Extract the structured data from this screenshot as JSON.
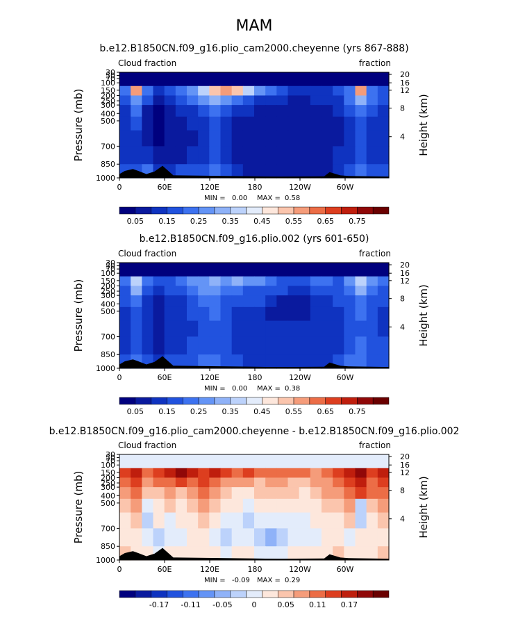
{
  "page_title": "MAM",
  "chart_data": [
    {
      "type": "heatmap",
      "title": "b.e12.B1850CN.f09_g16.plio_cam2000.cheyenne (yrs 867-888)",
      "left_label": "Cloud fraction",
      "right_label": "fraction",
      "ylabel": "Pressure (mb)",
      "ylabel_right": "Height (km)",
      "x_ticks": [
        "0",
        "60E",
        "120E",
        "180",
        "120W",
        "60W"
      ],
      "y_ticks": [
        "30",
        "50",
        "70",
        "100",
        "150",
        "200",
        "250",
        "300",
        "400",
        "500",
        "700",
        "850",
        "1000"
      ],
      "height_ticks": [
        "20",
        "16",
        "12",
        "8",
        "4"
      ],
      "min_label": "MIN =",
      "min_value": "0.00",
      "max_label": "MAX =",
      "max_value": "0.58",
      "colorbar_labels": [
        "0.05",
        "0.15",
        "0.25",
        "0.35",
        "0.45",
        "0.55",
        "0.65",
        "0.75"
      ],
      "colorbar_colors": [
        "#00007e",
        "#0a1a9e",
        "#0f33c0",
        "#2152de",
        "#3d72f0",
        "#6494f6",
        "#8fb2f8",
        "#bcd2fb",
        "#e3ecfb",
        "#fde7dc",
        "#fbc5ad",
        "#f59c7a",
        "#ec6d46",
        "#dd3e1f",
        "#bf1e0d",
        "#900808",
        "#6a0000"
      ],
      "field": [
        [
          "#00007e",
          "#00007e",
          "#00007e",
          "#00007e",
          "#00007e",
          "#00007e",
          "#00007e",
          "#00007e",
          "#00007e",
          "#00007e",
          "#00007e",
          "#00007e",
          "#00007e",
          "#00007e",
          "#00007e",
          "#00007e",
          "#00007e",
          "#00007e",
          "#00007e",
          "#00007e",
          "#00007e",
          "#00007e",
          "#00007e",
          "#00007e"
        ],
        [
          "#3d72f0",
          "#f59c7a",
          "#3d72f0",
          "#0f33c0",
          "#2152de",
          "#3d72f0",
          "#6494f6",
          "#bcd2fb",
          "#fbc5ad",
          "#f59c7a",
          "#fbc5ad",
          "#bcd2fb",
          "#6494f6",
          "#3d72f0",
          "#2152de",
          "#0f33c0",
          "#0f33c0",
          "#0f33c0",
          "#0f33c0",
          "#2152de",
          "#3d72f0",
          "#f59c7a",
          "#3d72f0",
          "#2152de"
        ],
        [
          "#2152de",
          "#6494f6",
          "#2152de",
          "#0a1a9e",
          "#0f33c0",
          "#2152de",
          "#3d72f0",
          "#6494f6",
          "#8fb2f8",
          "#6494f6",
          "#3d72f0",
          "#2152de",
          "#0f33c0",
          "#0f33c0",
          "#0f33c0",
          "#0a1a9e",
          "#0a1a9e",
          "#0f33c0",
          "#0f33c0",
          "#0f33c0",
          "#3d72f0",
          "#8fb2f8",
          "#3d72f0",
          "#2152de"
        ],
        [
          "#0f33c0",
          "#3d72f0",
          "#0a1a9e",
          "#00007e",
          "#0a1a9e",
          "#0f33c0",
          "#0f33c0",
          "#2152de",
          "#3d72f0",
          "#2152de",
          "#0f33c0",
          "#0f33c0",
          "#0a1a9e",
          "#0a1a9e",
          "#0a1a9e",
          "#0a1a9e",
          "#0a1a9e",
          "#0a1a9e",
          "#0a1a9e",
          "#0f33c0",
          "#2152de",
          "#3d72f0",
          "#2152de",
          "#0f33c0"
        ],
        [
          "#0f33c0",
          "#2152de",
          "#0a1a9e",
          "#00007e",
          "#0a1a9e",
          "#0a1a9e",
          "#0f33c0",
          "#0f33c0",
          "#2152de",
          "#0f33c0",
          "#0a1a9e",
          "#0a1a9e",
          "#0a1a9e",
          "#0a1a9e",
          "#0a1a9e",
          "#0a1a9e",
          "#0a1a9e",
          "#0a1a9e",
          "#0a1a9e",
          "#0a1a9e",
          "#0f33c0",
          "#2152de",
          "#0f33c0",
          "#0f33c0"
        ],
        [
          "#0f33c0",
          "#0f33c0",
          "#0a1a9e",
          "#00007e",
          "#0a1a9e",
          "#0a1a9e",
          "#0a1a9e",
          "#0f33c0",
          "#2152de",
          "#0f33c0",
          "#0a1a9e",
          "#0a1a9e",
          "#0a1a9e",
          "#0a1a9e",
          "#0a1a9e",
          "#0a1a9e",
          "#0a1a9e",
          "#0a1a9e",
          "#0a1a9e",
          "#0a1a9e",
          "#0f33c0",
          "#2152de",
          "#0f33c0",
          "#0f33c0"
        ],
        [
          "#0f33c0",
          "#0f33c0",
          "#0f33c0",
          "#0a1a9e",
          "#0a1a9e",
          "#0a1a9e",
          "#0f33c0",
          "#0f33c0",
          "#2152de",
          "#0f33c0",
          "#0a1a9e",
          "#0a1a9e",
          "#0a1a9e",
          "#0a1a9e",
          "#0a1a9e",
          "#0a1a9e",
          "#0a1a9e",
          "#0a1a9e",
          "#0a1a9e",
          "#0f33c0",
          "#0f33c0",
          "#2152de",
          "#0f33c0",
          "#0f33c0"
        ],
        [
          "#2152de",
          "#2152de",
          "#3d72f0",
          "#0f33c0",
          "#0f33c0",
          "#2152de",
          "#2152de",
          "#2152de",
          "#3d72f0",
          "#2152de",
          "#0f33c0",
          "#0a1a9e",
          "#0a1a9e",
          "#0a1a9e",
          "#0a1a9e",
          "#0a1a9e",
          "#0a1a9e",
          "#0a1a9e",
          "#0a1a9e",
          "#0f33c0",
          "#2152de",
          "#3d72f0",
          "#2152de",
          "#2152de"
        ]
      ]
    },
    {
      "type": "heatmap",
      "title": "b.e12.B1850CN.f09_g16.plio.002 (yrs 601-650)",
      "left_label": "Cloud fraction",
      "right_label": "fraction",
      "ylabel": "Pressure (mb)",
      "ylabel_right": "Height (km)",
      "x_ticks": [
        "0",
        "60E",
        "120E",
        "180",
        "120W",
        "60W"
      ],
      "y_ticks": [
        "30",
        "50",
        "70",
        "100",
        "150",
        "200",
        "250",
        "300",
        "400",
        "500",
        "700",
        "850",
        "1000"
      ],
      "height_ticks": [
        "20",
        "16",
        "12",
        "8",
        "4"
      ],
      "min_label": "MIN =",
      "min_value": "0.00",
      "max_label": "MAX =",
      "max_value": "0.38",
      "colorbar_labels": [
        "0.05",
        "0.15",
        "0.25",
        "0.35",
        "0.45",
        "0.55",
        "0.65",
        "0.75"
      ],
      "colorbar_colors": [
        "#00007e",
        "#0a1a9e",
        "#0f33c0",
        "#2152de",
        "#3d72f0",
        "#6494f6",
        "#8fb2f8",
        "#bcd2fb",
        "#e3ecfb",
        "#fde7dc",
        "#fbc5ad",
        "#f59c7a",
        "#ec6d46",
        "#dd3e1f",
        "#bf1e0d",
        "#900808",
        "#6a0000"
      ],
      "field": [
        [
          "#00007e",
          "#00007e",
          "#00007e",
          "#00007e",
          "#00007e",
          "#00007e",
          "#00007e",
          "#00007e",
          "#00007e",
          "#00007e",
          "#00007e",
          "#00007e",
          "#00007e",
          "#00007e",
          "#00007e",
          "#00007e",
          "#00007e",
          "#00007e",
          "#00007e",
          "#00007e",
          "#00007e",
          "#00007e",
          "#00007e",
          "#00007e"
        ],
        [
          "#3d72f0",
          "#bcd2fb",
          "#3d72f0",
          "#2152de",
          "#2152de",
          "#3d72f0",
          "#6494f6",
          "#6494f6",
          "#8fb2f8",
          "#6494f6",
          "#8fb2f8",
          "#6494f6",
          "#6494f6",
          "#3d72f0",
          "#2152de",
          "#2152de",
          "#2152de",
          "#3d72f0",
          "#3d72f0",
          "#2152de",
          "#6494f6",
          "#bcd2fb",
          "#6494f6",
          "#3d72f0"
        ],
        [
          "#2152de",
          "#8fb2f8",
          "#2152de",
          "#0f33c0",
          "#2152de",
          "#2152de",
          "#3d72f0",
          "#6494f6",
          "#6494f6",
          "#3d72f0",
          "#3d72f0",
          "#2152de",
          "#2152de",
          "#2152de",
          "#2152de",
          "#0f33c0",
          "#0f33c0",
          "#2152de",
          "#2152de",
          "#2152de",
          "#3d72f0",
          "#8fb2f8",
          "#3d72f0",
          "#2152de"
        ],
        [
          "#2152de",
          "#3d72f0",
          "#0f33c0",
          "#0a1a9e",
          "#0f33c0",
          "#0f33c0",
          "#2152de",
          "#3d72f0",
          "#3d72f0",
          "#2152de",
          "#2152de",
          "#2152de",
          "#2152de",
          "#0f33c0",
          "#0a1a9e",
          "#0a1a9e",
          "#0a1a9e",
          "#0f33c0",
          "#0f33c0",
          "#2152de",
          "#2152de",
          "#3d72f0",
          "#2152de",
          "#2152de"
        ],
        [
          "#0f33c0",
          "#2152de",
          "#0f33c0",
          "#0a1a9e",
          "#0f33c0",
          "#0f33c0",
          "#2152de",
          "#2152de",
          "#3d72f0",
          "#2152de",
          "#0f33c0",
          "#0f33c0",
          "#0f33c0",
          "#0a1a9e",
          "#0a1a9e",
          "#0a1a9e",
          "#0a1a9e",
          "#0f33c0",
          "#0f33c0",
          "#0f33c0",
          "#2152de",
          "#3d72f0",
          "#2152de",
          "#0f33c0"
        ],
        [
          "#0f33c0",
          "#2152de",
          "#0f33c0",
          "#0a1a9e",
          "#0f33c0",
          "#0f33c0",
          "#0f33c0",
          "#2152de",
          "#2152de",
          "#2152de",
          "#0f33c0",
          "#0f33c0",
          "#0f33c0",
          "#0f33c0",
          "#0f33c0",
          "#0f33c0",
          "#0f33c0",
          "#0f33c0",
          "#0f33c0",
          "#0f33c0",
          "#2152de",
          "#2152de",
          "#2152de",
          "#0f33c0"
        ],
        [
          "#0f33c0",
          "#2152de",
          "#0f33c0",
          "#0a1a9e",
          "#0f33c0",
          "#0f33c0",
          "#2152de",
          "#2152de",
          "#2152de",
          "#2152de",
          "#0f33c0",
          "#0f33c0",
          "#0f33c0",
          "#0f33c0",
          "#0f33c0",
          "#0f33c0",
          "#0f33c0",
          "#0f33c0",
          "#0f33c0",
          "#0f33c0",
          "#2152de",
          "#3d72f0",
          "#2152de",
          "#2152de"
        ],
        [
          "#2152de",
          "#3d72f0",
          "#2152de",
          "#0f33c0",
          "#2152de",
          "#2152de",
          "#2152de",
          "#3d72f0",
          "#3d72f0",
          "#2152de",
          "#2152de",
          "#0f33c0",
          "#0f33c0",
          "#0f33c0",
          "#0f33c0",
          "#0f33c0",
          "#0f33c0",
          "#0f33c0",
          "#0f33c0",
          "#2152de",
          "#3d72f0",
          "#3d72f0",
          "#2152de",
          "#2152de"
        ]
      ]
    },
    {
      "type": "heatmap",
      "title": "b.e12.B1850CN.f09_g16.plio_cam2000.cheyenne - b.e12.B1850CN.f09_g16.plio.002",
      "left_label": "Cloud fraction",
      "right_label": "fraction",
      "ylabel": "Pressure (mb)",
      "ylabel_right": "Height (km)",
      "x_ticks": [
        "0",
        "60E",
        "120E",
        "180",
        "120W",
        "60W"
      ],
      "y_ticks": [
        "30",
        "50",
        "70",
        "100",
        "150",
        "200",
        "250",
        "300",
        "400",
        "500",
        "700",
        "850",
        "1000"
      ],
      "height_ticks": [
        "20",
        "16",
        "12",
        "8",
        "4"
      ],
      "min_label": "MIN =",
      "min_value": "-0.09",
      "max_label": "MAX =",
      "max_value": "0.29",
      "colorbar_labels": [
        "-0.17",
        "-0.11",
        "-0.05",
        "0",
        "0.05",
        "0.11",
        "0.17"
      ],
      "colorbar_colors": [
        "#00007e",
        "#0a1a9e",
        "#0f33c0",
        "#2152de",
        "#3d72f0",
        "#6494f6",
        "#8fb2f8",
        "#bcd2fb",
        "#e3ecfb",
        "#fde7dc",
        "#fbc5ad",
        "#f59c7a",
        "#ec6d46",
        "#dd3e1f",
        "#bf1e0d",
        "#900808",
        "#6a0000"
      ],
      "field": [
        [
          "#e3ecfb",
          "#e3ecfb",
          "#e3ecfb",
          "#e3ecfb",
          "#e3ecfb",
          "#e3ecfb",
          "#e3ecfb",
          "#e3ecfb",
          "#e3ecfb",
          "#e3ecfb",
          "#e3ecfb",
          "#e3ecfb",
          "#e3ecfb",
          "#e3ecfb",
          "#e3ecfb",
          "#e3ecfb",
          "#e3ecfb",
          "#e3ecfb",
          "#e3ecfb",
          "#e3ecfb",
          "#e3ecfb",
          "#e3ecfb",
          "#e3ecfb",
          "#e3ecfb"
        ],
        [
          "#dd3e1f",
          "#bf1e0d",
          "#ec6d46",
          "#dd3e1f",
          "#bf1e0d",
          "#900808",
          "#bf1e0d",
          "#dd3e1f",
          "#bf1e0d",
          "#dd3e1f",
          "#ec6d46",
          "#dd3e1f",
          "#ec6d46",
          "#ec6d46",
          "#ec6d46",
          "#ec6d46",
          "#ec6d46",
          "#f59c7a",
          "#ec6d46",
          "#dd3e1f",
          "#bf1e0d",
          "#900808",
          "#dd3e1f",
          "#bf1e0d"
        ],
        [
          "#ec6d46",
          "#dd3e1f",
          "#f59c7a",
          "#ec6d46",
          "#ec6d46",
          "#dd3e1f",
          "#ec6d46",
          "#dd3e1f",
          "#ec6d46",
          "#f59c7a",
          "#f59c7a",
          "#f59c7a",
          "#fbc5ad",
          "#f59c7a",
          "#f59c7a",
          "#fbc5ad",
          "#fbc5ad",
          "#f59c7a",
          "#f59c7a",
          "#ec6d46",
          "#dd3e1f",
          "#bf1e0d",
          "#ec6d46",
          "#dd3e1f"
        ],
        [
          "#f59c7a",
          "#ec6d46",
          "#fbc5ad",
          "#fbc5ad",
          "#f59c7a",
          "#fbc5ad",
          "#f59c7a",
          "#ec6d46",
          "#f59c7a",
          "#fbc5ad",
          "#fde7dc",
          "#fde7dc",
          "#fbc5ad",
          "#fbc5ad",
          "#fbc5ad",
          "#fbc5ad",
          "#fde7dc",
          "#fbc5ad",
          "#f59c7a",
          "#f59c7a",
          "#ec6d46",
          "#dd3e1f",
          "#ec6d46",
          "#ec6d46"
        ],
        [
          "#fbc5ad",
          "#f59c7a",
          "#e3ecfb",
          "#fde7dc",
          "#fbc5ad",
          "#fde7dc",
          "#fbc5ad",
          "#f59c7a",
          "#fbc5ad",
          "#fde7dc",
          "#fde7dc",
          "#e3ecfb",
          "#fde7dc",
          "#fde7dc",
          "#fde7dc",
          "#fde7dc",
          "#fde7dc",
          "#fde7dc",
          "#fbc5ad",
          "#fbc5ad",
          "#f59c7a",
          "#bcd2fb",
          "#fbc5ad",
          "#f59c7a"
        ],
        [
          "#fde7dc",
          "#fbc5ad",
          "#bcd2fb",
          "#fde7dc",
          "#e3ecfb",
          "#fde7dc",
          "#fde7dc",
          "#fbc5ad",
          "#fde7dc",
          "#e3ecfb",
          "#e3ecfb",
          "#bcd2fb",
          "#e3ecfb",
          "#e3ecfb",
          "#e3ecfb",
          "#e3ecfb",
          "#e3ecfb",
          "#fde7dc",
          "#fde7dc",
          "#fde7dc",
          "#fbc5ad",
          "#bcd2fb",
          "#fde7dc",
          "#fbc5ad"
        ],
        [
          "#fde7dc",
          "#fde7dc",
          "#e3ecfb",
          "#bcd2fb",
          "#e3ecfb",
          "#e3ecfb",
          "#fde7dc",
          "#fde7dc",
          "#e3ecfb",
          "#bcd2fb",
          "#e3ecfb",
          "#e3ecfb",
          "#bcd2fb",
          "#8fb2f8",
          "#bcd2fb",
          "#e3ecfb",
          "#e3ecfb",
          "#e3ecfb",
          "#fde7dc",
          "#fde7dc",
          "#e3ecfb",
          "#fde7dc",
          "#fde7dc",
          "#fde7dc"
        ],
        [
          "#fbc5ad",
          "#fde7dc",
          "#fde7dc",
          "#e3ecfb",
          "#fde7dc",
          "#fde7dc",
          "#fde7dc",
          "#fde7dc",
          "#fde7dc",
          "#e3ecfb",
          "#fde7dc",
          "#fde7dc",
          "#e3ecfb",
          "#e3ecfb",
          "#e3ecfb",
          "#fde7dc",
          "#fde7dc",
          "#fde7dc",
          "#fde7dc",
          "#fbc5ad",
          "#fde7dc",
          "#fde7dc",
          "#fde7dc",
          "#fbc5ad"
        ]
      ]
    }
  ]
}
